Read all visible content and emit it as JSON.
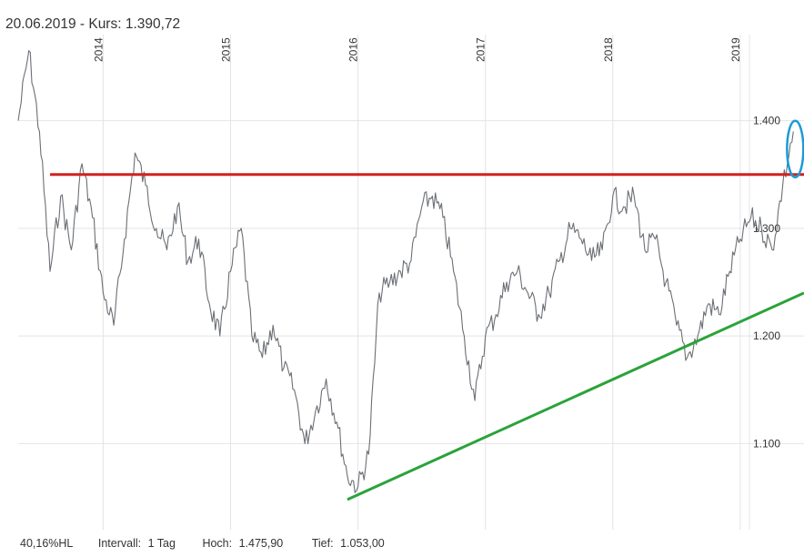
{
  "header": {
    "title": "20.06.2019  - Kurs: 1.390,72"
  },
  "footer": {
    "hl": "40,16%HL",
    "interval_label": "Intervall:",
    "interval_value": "1 Tag",
    "high_label": "Hoch:",
    "high_value": "1.475,90",
    "low_label": "Tief:",
    "low_value": "1.053,00"
  },
  "colors": {
    "price_line": "#6b6f75",
    "resistance": "#d22020",
    "support": "#2ba33a",
    "highlight_ellipse": "#1a9bd7",
    "grid": "#e4e4e4"
  },
  "chart_data": {
    "type": "line",
    "title": "",
    "xlabel": "",
    "ylabel": "",
    "x_ticks": [
      "2014",
      "2015",
      "2016",
      "2017",
      "2018",
      "2019"
    ],
    "y_ticks": [
      "1.100",
      "1.200",
      "1.300",
      "1.400"
    ],
    "y_tick_values": [
      1100,
      1200,
      1300,
      1400
    ],
    "xlim": [
      "2013-05",
      "2019-07"
    ],
    "ylim": [
      1020,
      1480
    ],
    "grid": true,
    "series": [
      {
        "x": [
          "2013-05",
          "2013-06",
          "2013-07",
          "2013-08",
          "2013-09",
          "2013-10",
          "2013-11",
          "2013-12",
          "2014-01",
          "2014-02",
          "2014-03",
          "2014-04",
          "2014-05",
          "2014-06",
          "2014-07",
          "2014-08",
          "2014-09",
          "2014-10",
          "2014-11",
          "2014-12",
          "2015-01",
          "2015-02",
          "2015-03",
          "2015-04",
          "2015-05",
          "2015-06",
          "2015-07",
          "2015-08",
          "2015-09",
          "2015-10",
          "2015-11",
          "2015-12",
          "2016-01",
          "2016-02",
          "2016-03",
          "2016-04",
          "2016-05",
          "2016-06",
          "2016-07",
          "2016-08",
          "2016-09",
          "2016-10",
          "2016-11",
          "2016-12",
          "2017-01",
          "2017-02",
          "2017-03",
          "2017-04",
          "2017-05",
          "2017-06",
          "2017-07",
          "2017-08",
          "2017-09",
          "2017-10",
          "2017-11",
          "2017-12",
          "2018-01",
          "2018-02",
          "2018-03",
          "2018-04",
          "2018-05",
          "2018-06",
          "2018-07",
          "2018-08",
          "2018-09",
          "2018-10",
          "2018-11",
          "2018-12",
          "2019-01",
          "2019-02",
          "2019-03",
          "2019-04",
          "2019-05",
          "2019-06"
        ],
        "values": [
          1400,
          1465,
          1390,
          1260,
          1330,
          1280,
          1360,
          1310,
          1240,
          1210,
          1290,
          1370,
          1340,
          1300,
          1280,
          1320,
          1270,
          1290,
          1230,
          1200,
          1260,
          1300,
          1200,
          1180,
          1210,
          1170,
          1150,
          1100,
          1130,
          1160,
          1120,
          1070,
          1060,
          1090,
          1240,
          1250,
          1260,
          1270,
          1320,
          1330,
          1310,
          1260,
          1200,
          1140,
          1200,
          1220,
          1250,
          1260,
          1240,
          1220,
          1240,
          1270,
          1300,
          1290,
          1270,
          1280,
          1330,
          1320,
          1330,
          1280,
          1290,
          1250,
          1210,
          1180,
          1200,
          1230,
          1220,
          1260,
          1290,
          1310,
          1300,
          1280,
          1340,
          1390
        ]
      }
    ],
    "annotations": [
      {
        "type": "horizontal_line",
        "color": "red",
        "y": 1350,
        "x_from": "2013-08",
        "x_to": "2019-07"
      },
      {
        "type": "trend_line",
        "color": "green",
        "from": {
          "x": "2015-12",
          "y": 1048
        },
        "to": {
          "x": "2019-07",
          "y": 1240
        }
      },
      {
        "type": "ellipse",
        "color": "blue",
        "center": {
          "x": "2019-06",
          "y": 1372
        }
      }
    ]
  }
}
